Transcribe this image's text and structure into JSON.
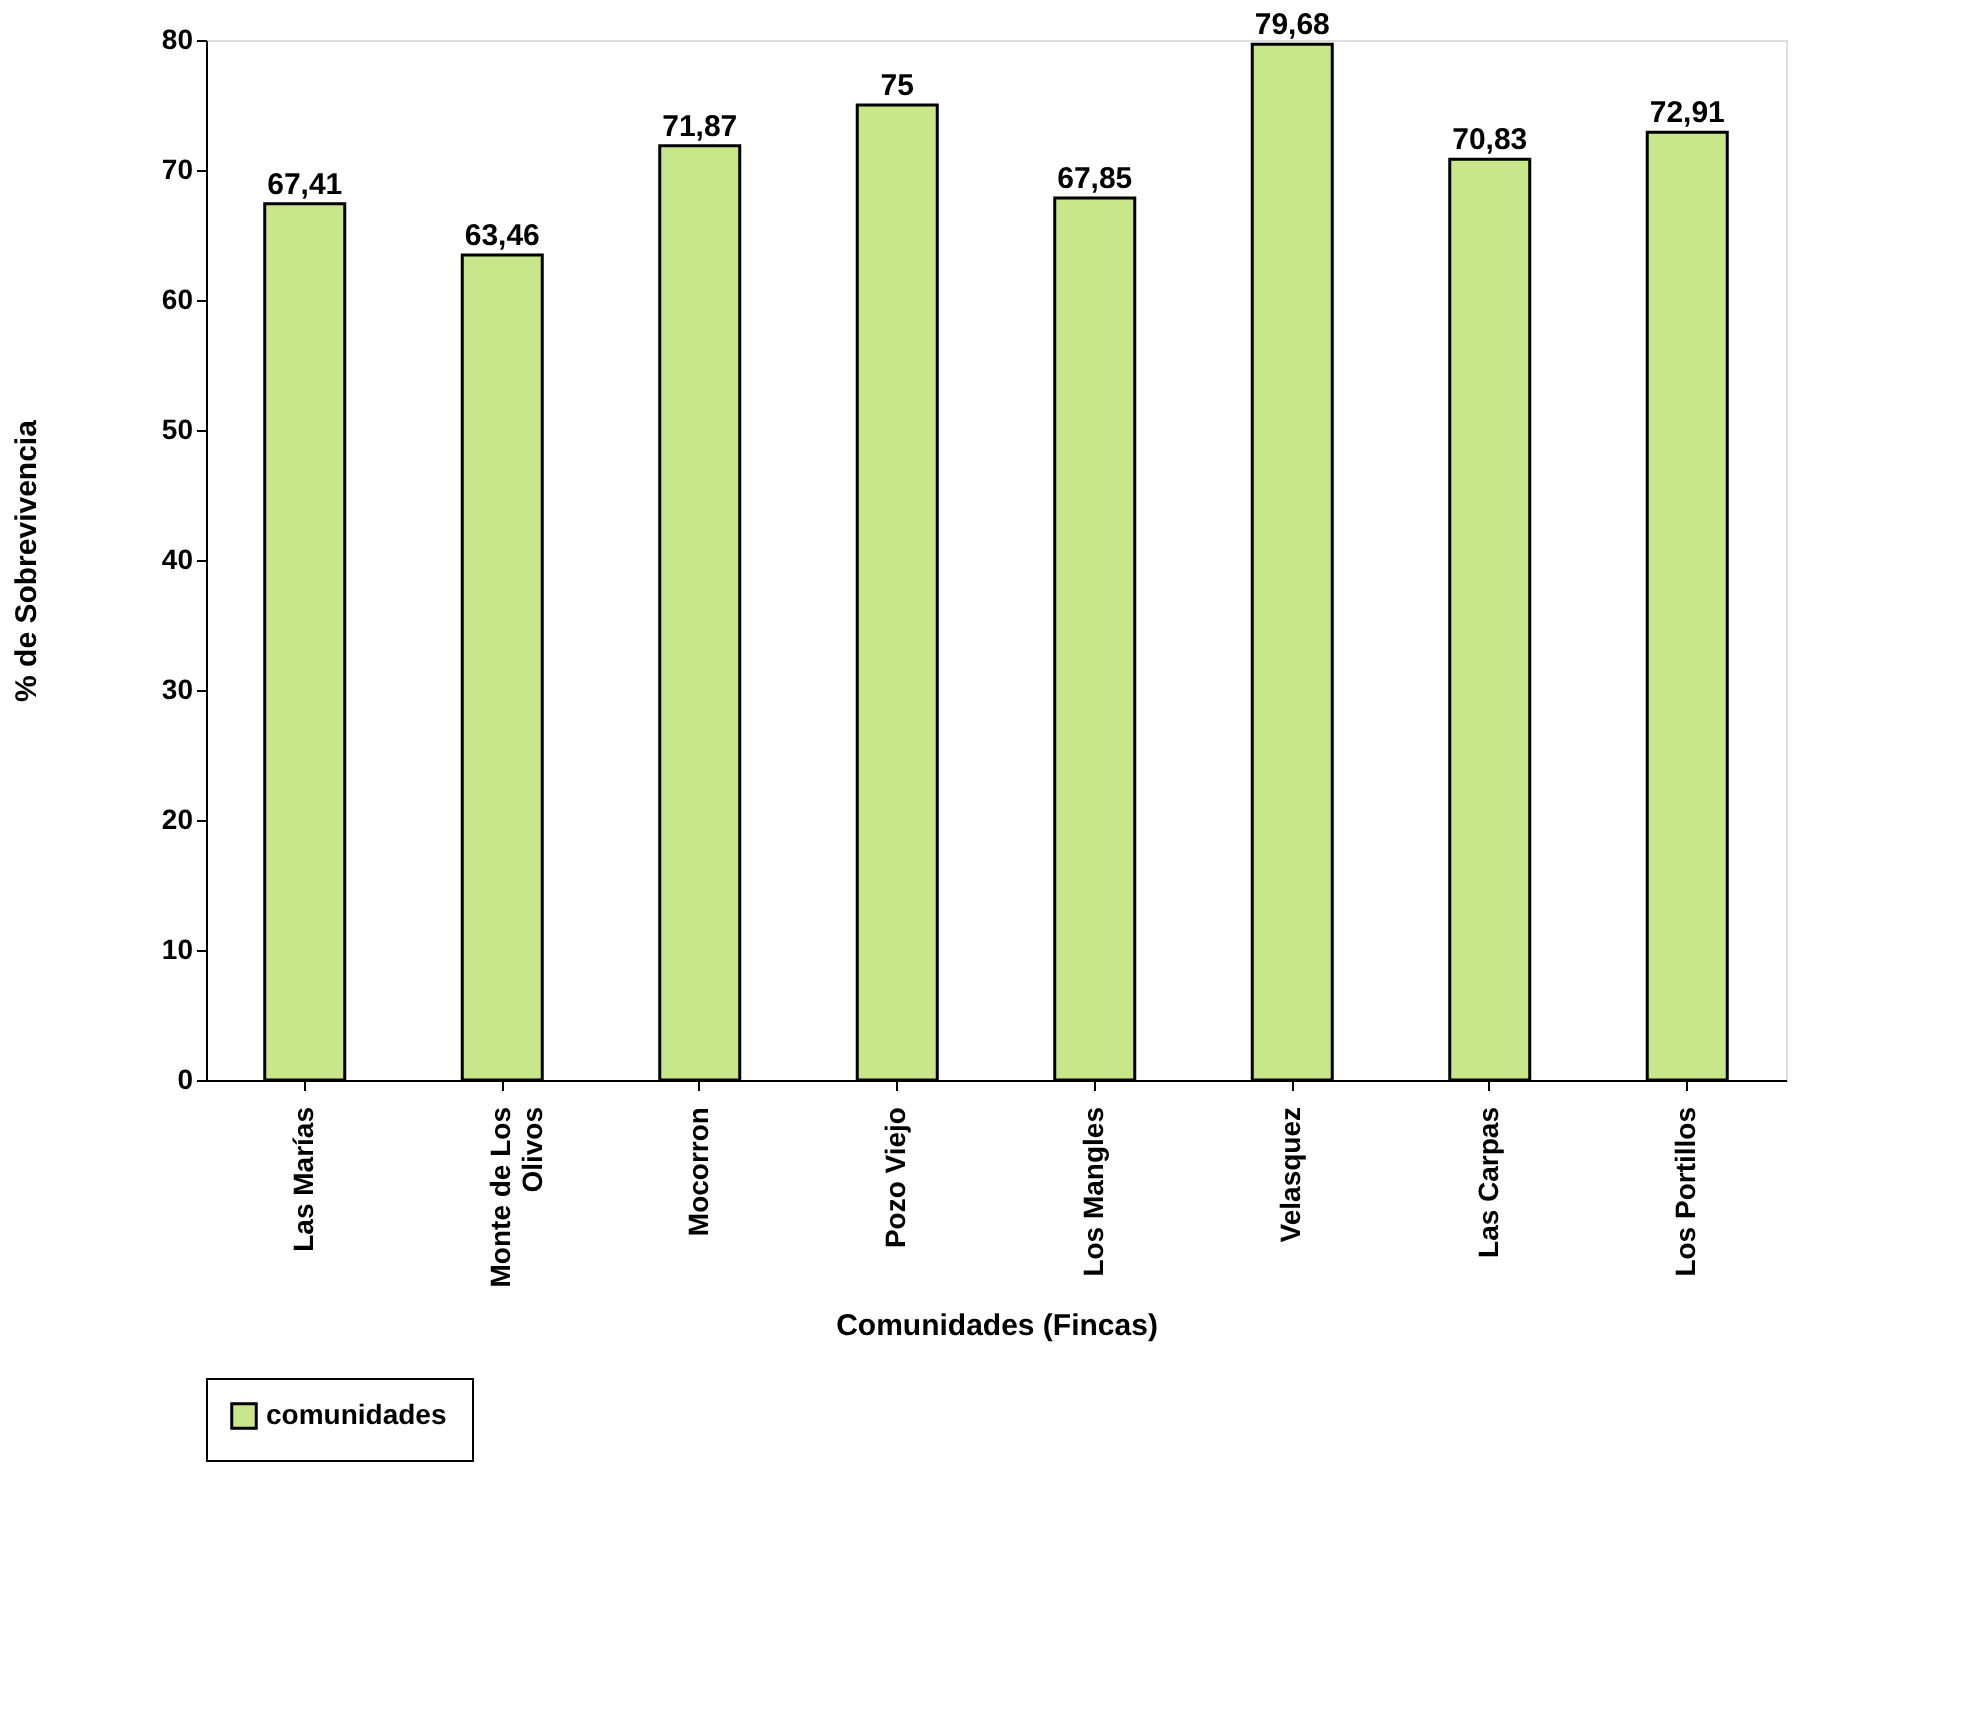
{
  "chart_data": {
    "type": "bar",
    "xlabel": "Comunidades (Fincas)",
    "ylabel": "% de Sobrevivencia",
    "categories": [
      "Las Marías",
      "Monte de Los Olivos",
      "Mocorron",
      "Pozo Viejo",
      "Los Mangles",
      "Velasquez",
      "Las Carpas",
      "Los Portillos"
    ],
    "series": [
      {
        "name": "comunidades",
        "color": "#c8e68a",
        "values": [
          67.41,
          63.46,
          71.87,
          75,
          67.85,
          79.68,
          70.83,
          72.91
        ],
        "value_labels": [
          "67,41",
          "63,46",
          "71,87",
          "75",
          "67,85",
          "79,68",
          "70,83",
          "72,91"
        ]
      }
    ],
    "ylim": [
      0,
      80
    ],
    "yticks": [
      0,
      10,
      20,
      30,
      40,
      50,
      60,
      70,
      80
    ],
    "grid": false,
    "legend": "bottom"
  }
}
